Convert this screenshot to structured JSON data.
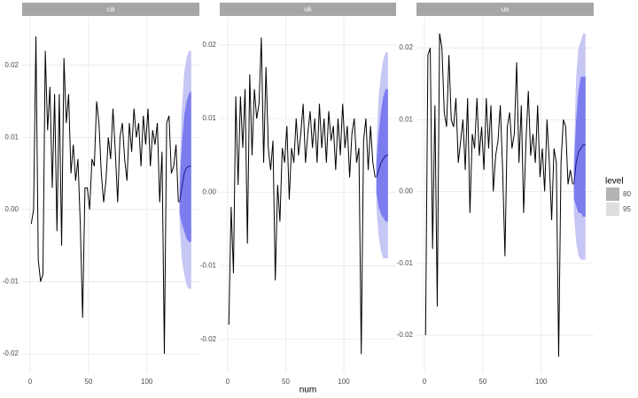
{
  "chart_data": [
    {
      "type": "line",
      "title": "ca",
      "x": [
        1,
        3,
        5,
        7,
        9,
        11,
        13,
        15,
        17,
        19,
        21,
        23,
        25,
        27,
        29,
        31,
        33,
        35,
        37,
        39,
        41,
        43,
        45,
        47,
        49,
        51,
        53,
        55,
        57,
        59,
        61,
        63,
        65,
        67,
        69,
        71,
        73,
        75,
        77,
        79,
        81,
        83,
        85,
        87,
        89,
        91,
        93,
        95,
        97,
        99,
        101,
        103,
        105,
        107,
        109,
        111,
        113,
        115,
        117,
        119,
        121,
        123,
        125,
        127
      ],
      "series": [
        {
          "color": "#000000",
          "values": [
            -0.002,
            0,
            0.024,
            -0.007,
            -0.01,
            -0.009,
            0.022,
            0.011,
            0.017,
            0.003,
            0.016,
            -0.003,
            0.016,
            -0.005,
            0.021,
            0.012,
            0.016,
            0.005,
            0.009,
            0.004,
            0.007,
            -0.002,
            -0.015,
            0.003,
            0.003,
            0,
            0.007,
            0.006,
            0.015,
            0.012,
            0.005,
            0.001,
            0.004,
            0.01,
            0.007,
            0.014,
            0.008,
            0.001,
            0.01,
            0.012,
            0.007,
            0.004,
            0.012,
            0.008,
            0.014,
            0.01,
            0.012,
            0.006,
            0.013,
            0.009,
            0.014,
            0.006,
            0.011,
            0.009,
            0.012,
            0.001,
            0.008,
            -0.02,
            0.012,
            0.013,
            0.005,
            0.006,
            0.009,
            0.001
          ]
        }
      ],
      "forecast": {
        "x": [
          128,
          130,
          132,
          134,
          136,
          138
        ],
        "color": "#1c1c8a",
        "values": [
          0.001,
          0.003,
          0.005,
          0.0058,
          0.006,
          0.006
        ]
      },
      "bands": [
        {
          "color": "#c7c7f6",
          "lower": [
            -0.002,
            -0.007,
            -0.009,
            -0.0105,
            -0.011,
            -0.011
          ],
          "upper": [
            0.005,
            0.014,
            0.019,
            0.021,
            0.022,
            0.022
          ]
        },
        {
          "color": "#7c7cef",
          "lower": [
            -0.0005,
            -0.002,
            -0.003,
            -0.004,
            -0.0045,
            -0.0045
          ],
          "upper": [
            0.003,
            0.009,
            0.013,
            0.015,
            0.016,
            0.0165
          ]
        }
      ],
      "xlim": [
        -6.8,
        145
      ],
      "ylim": [
        -0.0227,
        0.0266
      ],
      "xticks": [
        0,
        50,
        100
      ],
      "yticks": [
        -0.02,
        -0.01,
        {
          "value": 0,
          "label": "0.00"
        },
        0.01,
        0.02
      ]
    },
    {
      "type": "line",
      "title": "uk",
      "xlabel": "num",
      "x": [
        1,
        3,
        5,
        7,
        9,
        11,
        13,
        15,
        17,
        19,
        21,
        23,
        25,
        27,
        29,
        31,
        33,
        35,
        37,
        39,
        41,
        43,
        45,
        47,
        49,
        51,
        53,
        55,
        57,
        59,
        61,
        63,
        65,
        67,
        69,
        71,
        73,
        75,
        77,
        79,
        81,
        83,
        85,
        87,
        89,
        91,
        93,
        95,
        97,
        99,
        101,
        103,
        105,
        107,
        109,
        111,
        113,
        115,
        117,
        119,
        121,
        123,
        125,
        127
      ],
      "series": [
        {
          "color": "#000000",
          "values": [
            -0.018,
            -0.002,
            -0.011,
            0.013,
            0.001,
            0.013,
            0.006,
            0.014,
            -0.007,
            0.016,
            0.005,
            0.014,
            0.01,
            0.012,
            0.021,
            0.004,
            0.017,
            0.006,
            0.003,
            0.007,
            -0.012,
            0.001,
            -0.004,
            0.006,
            0.004,
            0.009,
            -0.001,
            0.006,
            0.004,
            0.01,
            0.005,
            0.008,
            0.012,
            0.004,
            0.008,
            0.011,
            0.006,
            0.01,
            0.004,
            0.012,
            0.006,
            0.01,
            0.004,
            0.011,
            0.007,
            0.009,
            0.003,
            0.01,
            0.005,
            0.012,
            0.006,
            0.009,
            0.002,
            0.008,
            0.01,
            0.004,
            0.006,
            -0.022,
            0.007,
            0.01,
            0.003,
            0.009,
            0.004,
            0.002
          ]
        }
      ],
      "forecast": {
        "x": [
          128,
          130,
          132,
          134,
          136,
          138
        ],
        "color": "#1c1c8a",
        "values": [
          0.002,
          0.003,
          0.004,
          0.0045,
          0.005,
          0.005
        ]
      },
      "bands": [
        {
          "color": "#c7c7f6",
          "lower": [
            -0.002,
            -0.006,
            -0.008,
            -0.009,
            -0.009,
            -0.009
          ],
          "upper": [
            0.006,
            0.013,
            0.016,
            0.018,
            0.019,
            0.019
          ]
        },
        {
          "color": "#7c7cef",
          "lower": [
            0,
            -0.002,
            -0.003,
            -0.0035,
            -0.004,
            -0.004
          ],
          "upper": [
            0.004,
            0.008,
            0.011,
            0.013,
            0.014,
            0.014
          ]
        }
      ],
      "xlim": [
        -6.8,
        145
      ],
      "ylim": [
        -0.0246,
        0.0237
      ],
      "xticks": [
        0,
        50,
        100
      ],
      "yticks": [
        -0.02,
        -0.01,
        {
          "value": 0,
          "label": "0.00"
        },
        0.01,
        0.02
      ]
    },
    {
      "type": "line",
      "title": "us",
      "x": [
        1,
        3,
        5,
        7,
        9,
        11,
        13,
        15,
        17,
        19,
        21,
        23,
        25,
        27,
        29,
        31,
        33,
        35,
        37,
        39,
        41,
        43,
        45,
        47,
        49,
        51,
        53,
        55,
        57,
        59,
        61,
        63,
        65,
        67,
        69,
        71,
        73,
        75,
        77,
        79,
        81,
        83,
        85,
        87,
        89,
        91,
        93,
        95,
        97,
        99,
        101,
        103,
        105,
        107,
        109,
        111,
        113,
        115,
        117,
        119,
        121,
        123,
        125,
        127
      ],
      "series": [
        {
          "color": "#000000",
          "values": [
            -0.02,
            0.019,
            0.02,
            -0.008,
            0.012,
            -0.016,
            0.022,
            0.02,
            0.011,
            0.009,
            0.019,
            0.01,
            0.009,
            0.013,
            0.004,
            0.007,
            0.01,
            0.003,
            0.013,
            -0.003,
            0.008,
            0.006,
            0.013,
            0.005,
            0.009,
            0.003,
            0.013,
            0.006,
            0.012,
            0,
            0.005,
            0.007,
            0.012,
            0.003,
            -0.009,
            0.009,
            0.011,
            0.006,
            0.008,
            0.018,
            0.004,
            0.012,
            -0.003,
            0.007,
            0.014,
            0.005,
            0.008,
            0.004,
            0.012,
            0.002,
            0.006,
            0,
            0.01,
            0.004,
            -0.004,
            0.006,
            0.004,
            -0.023,
            0.004,
            0.01,
            0.009,
            0.001,
            0.003,
            0.001
          ]
        }
      ],
      "forecast": {
        "x": [
          128,
          130,
          132,
          134,
          136,
          138
        ],
        "color": "#1c1c8a",
        "values": [
          0.001,
          0.004,
          0.0055,
          0.006,
          0.0065,
          0.0065
        ]
      },
      "bands": [
        {
          "color": "#c7c7f6",
          "lower": [
            -0.003,
            -0.007,
            -0.009,
            -0.0095,
            -0.0095,
            -0.0095
          ],
          "upper": [
            0.005,
            0.016,
            0.02,
            0.021,
            0.022,
            0.022
          ]
        },
        {
          "color": "#7c7cef",
          "lower": [
            -0.001,
            -0.002,
            -0.003,
            -0.003,
            -0.0035,
            -0.0035
          ],
          "upper": [
            0.003,
            0.01,
            0.014,
            0.016,
            0.016,
            0.016
          ]
        }
      ],
      "xlim": [
        -6.8,
        145
      ],
      "ylim": [
        -0.0253,
        0.0242
      ],
      "xticks": [
        0,
        50,
        100
      ],
      "yticks": [
        -0.02,
        -0.01,
        {
          "value": 0,
          "label": "0.00"
        },
        0.01,
        0.02
      ],
      "legend": {
        "title": "level",
        "entries": [
          {
            "name": "80",
            "color": "#b3b3b3"
          },
          {
            "name": "95",
            "color": "#dedede"
          }
        ]
      }
    }
  ]
}
